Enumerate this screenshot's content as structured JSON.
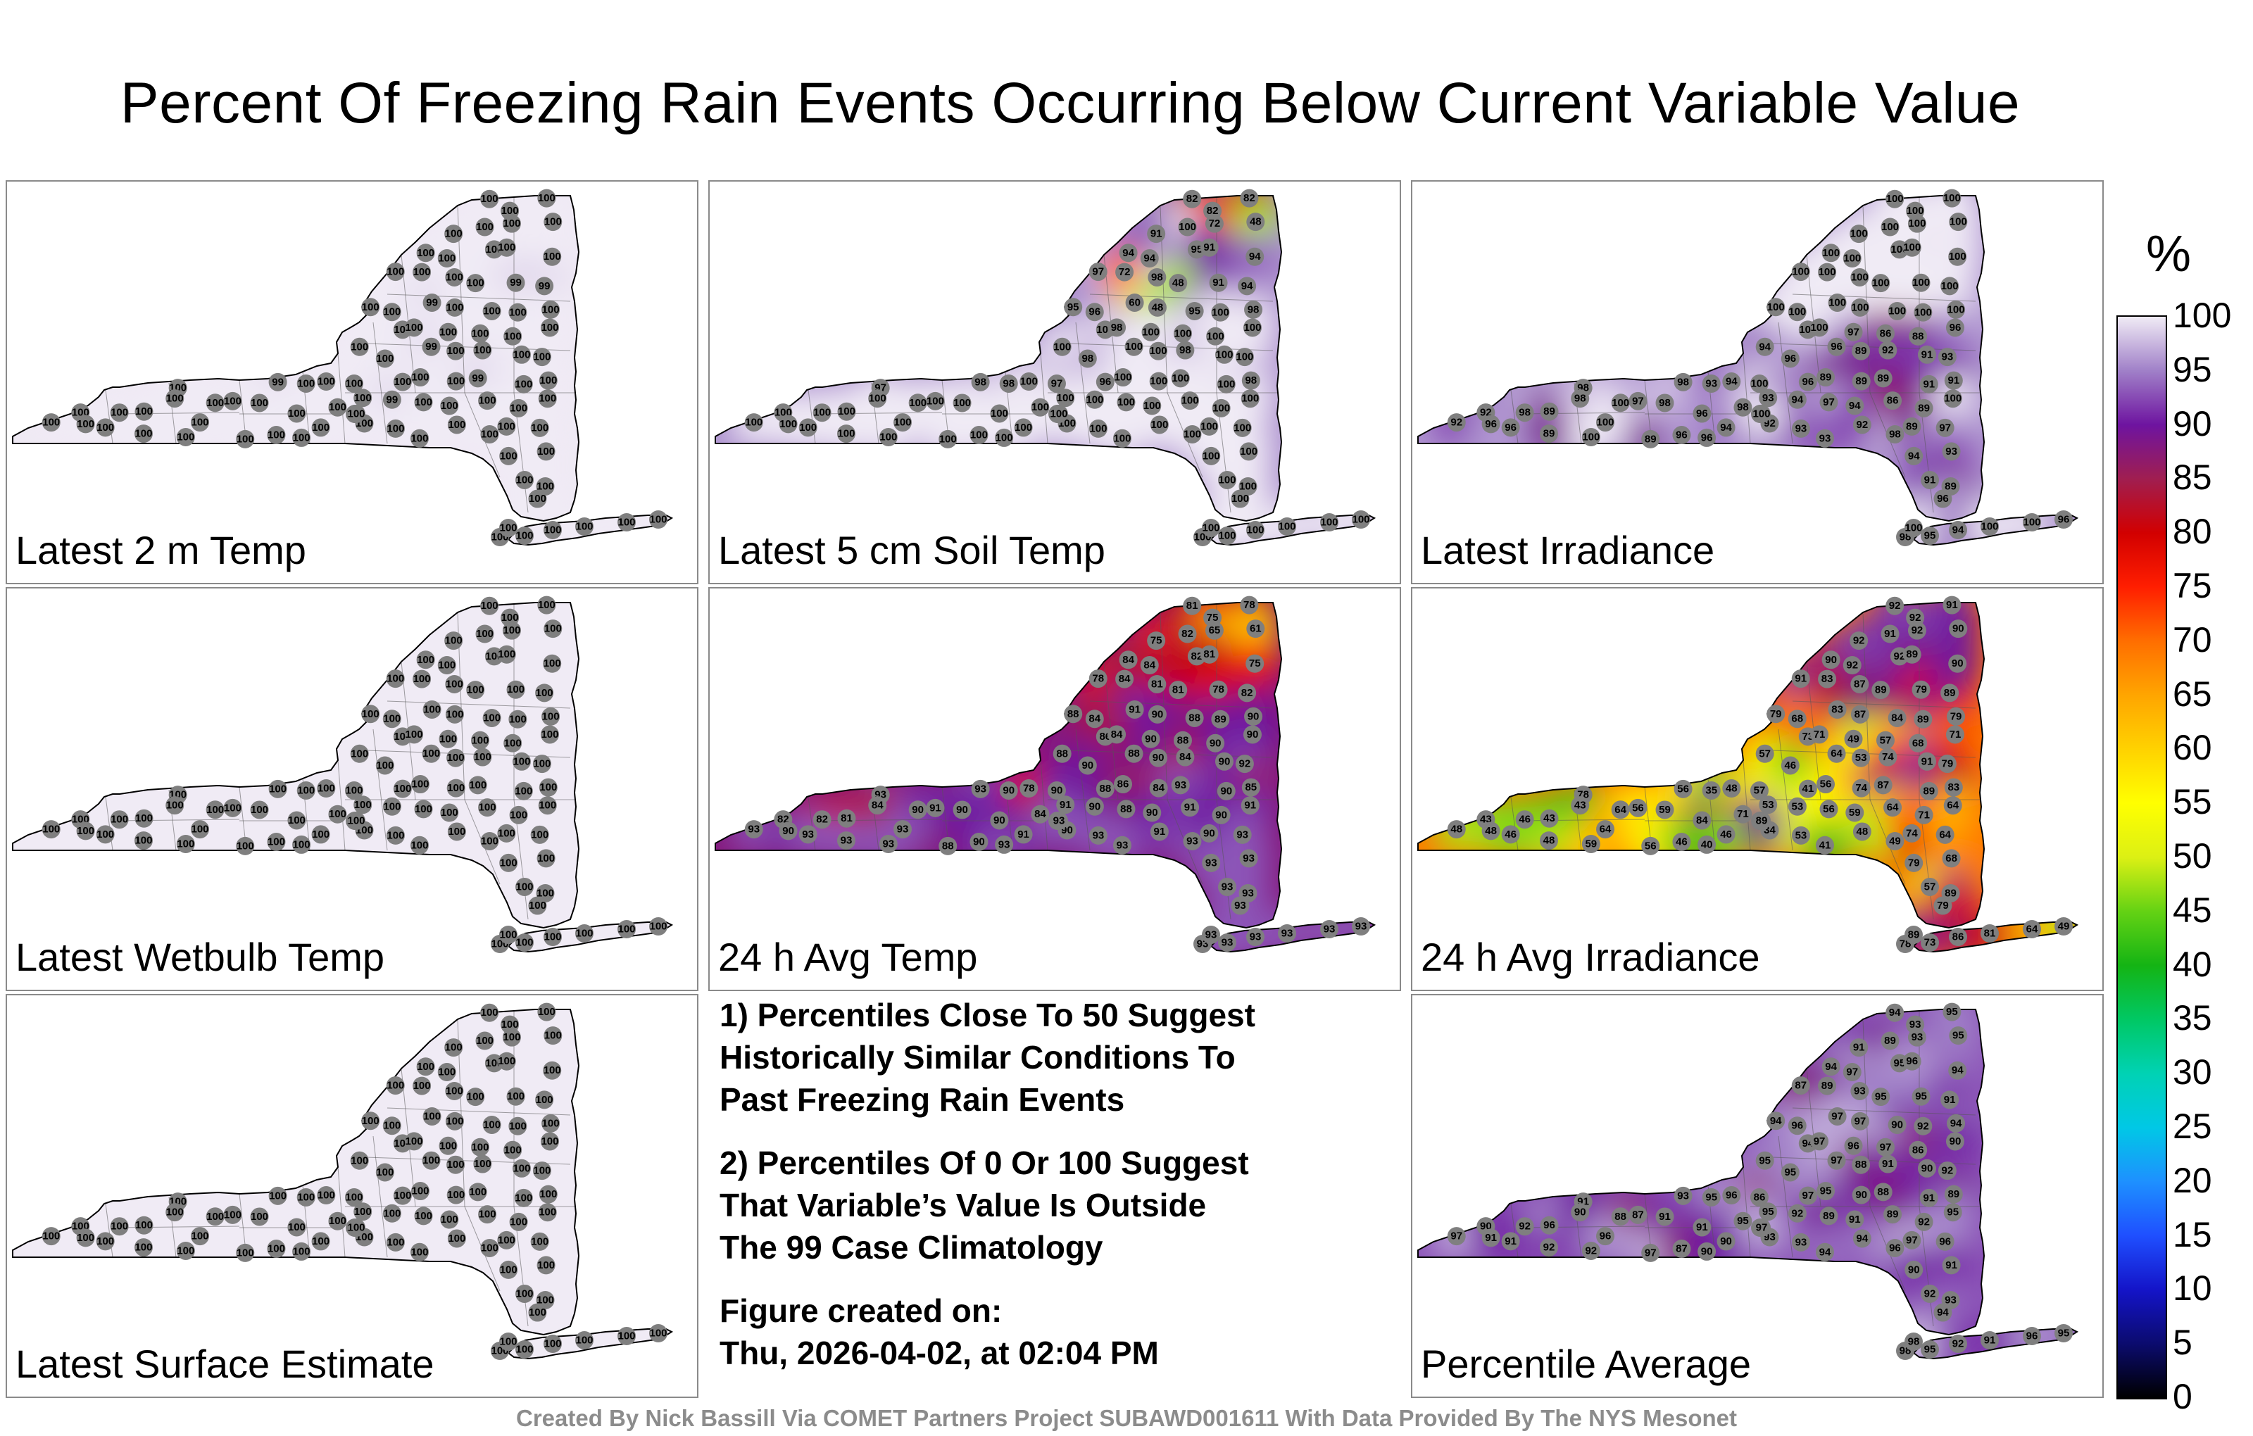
{
  "title": "Percent Of Freezing Rain Events Occurring Below Current Variable Value",
  "colorbar": {
    "unit": "%",
    "ticks": [
      "100",
      "95",
      "90",
      "85",
      "80",
      "75",
      "70",
      "65",
      "60",
      "55",
      "50",
      "45",
      "40",
      "35",
      "30",
      "25",
      "20",
      "15",
      "10",
      "5",
      "0"
    ],
    "stops": [
      {
        "value": 0,
        "color": "#000000"
      },
      {
        "value": 5,
        "color": "#0b0b6e"
      },
      {
        "value": 10,
        "color": "#1414c8"
      },
      {
        "value": 15,
        "color": "#1f4fff"
      },
      {
        "value": 20,
        "color": "#1e90ff"
      },
      {
        "value": 25,
        "color": "#00c8e6"
      },
      {
        "value": 30,
        "color": "#00d2b4"
      },
      {
        "value": 35,
        "color": "#00c864"
      },
      {
        "value": 40,
        "color": "#14b414"
      },
      {
        "value": 45,
        "color": "#64d214"
      },
      {
        "value": 50,
        "color": "#dcf014"
      },
      {
        "value": 55,
        "color": "#ffff00"
      },
      {
        "value": 60,
        "color": "#ffd200"
      },
      {
        "value": 65,
        "color": "#ffa500"
      },
      {
        "value": 70,
        "color": "#ff6e00"
      },
      {
        "value": 75,
        "color": "#ff1e00"
      },
      {
        "value": 80,
        "color": "#d20000"
      },
      {
        "value": 85,
        "color": "#a01e50"
      },
      {
        "value": 90,
        "color": "#6e14a0"
      },
      {
        "value": 95,
        "color": "#a080c8"
      },
      {
        "value": 100,
        "color": "#f0ebf5"
      }
    ]
  },
  "panels": [
    {
      "label": "Latest 2 m Temp",
      "values": [
        100,
        100,
        100,
        100,
        100,
        100,
        100,
        100,
        100,
        100,
        100,
        100,
        100,
        100,
        100,
        100,
        99,
        99,
        100,
        100,
        99,
        100,
        100,
        100,
        100,
        100,
        100,
        100,
        100,
        100,
        100,
        100,
        100,
        99,
        100,
        100,
        100,
        100,
        100,
        99,
        100,
        100,
        100,
        100,
        100,
        100,
        99,
        100,
        100,
        100,
        100,
        100,
        100,
        100,
        100,
        100,
        100,
        100,
        100,
        99,
        100,
        100,
        100,
        100,
        100,
        100,
        100,
        100,
        100,
        100,
        100,
        100,
        100,
        100,
        100,
        100,
        100,
        100,
        100,
        100,
        100,
        100,
        100,
        100,
        100,
        100,
        100,
        100,
        100,
        100,
        100,
        100,
        100,
        100,
        100,
        100,
        100
      ]
    },
    {
      "label": "Latest 5 cm Soil Temp",
      "values": [
        82,
        82,
        82,
        91,
        100,
        72,
        48,
        94,
        94,
        95,
        91,
        94,
        97,
        72,
        98,
        48,
        91,
        94,
        95,
        96,
        60,
        48,
        95,
        100,
        98,
        100,
        98,
        100,
        100,
        100,
        100,
        100,
        98,
        100,
        100,
        98,
        100,
        100,
        97,
        98,
        98,
        100,
        97,
        96,
        100,
        100,
        100,
        100,
        98,
        100,
        100,
        100,
        100,
        100,
        100,
        100,
        100,
        100,
        100,
        100,
        100,
        100,
        100,
        100,
        100,
        100,
        100,
        100,
        100,
        100,
        100,
        100,
        100,
        100,
        100,
        100,
        100,
        100,
        100,
        100,
        100,
        100,
        100,
        100,
        100,
        100,
        100,
        100,
        100,
        100,
        100,
        100,
        100,
        100,
        100,
        100,
        100
      ]
    },
    {
      "label": "Latest Irradiance",
      "values": [
        100,
        100,
        100,
        100,
        100,
        100,
        100,
        100,
        100,
        100,
        100,
        100,
        100,
        100,
        100,
        100,
        100,
        100,
        100,
        100,
        100,
        100,
        100,
        100,
        100,
        100,
        100,
        97,
        86,
        88,
        96,
        94,
        96,
        96,
        89,
        92,
        91,
        93,
        98,
        98,
        93,
        94,
        100,
        96,
        89,
        89,
        89,
        91,
        91,
        92,
        98,
        89,
        98,
        100,
        97,
        98,
        96,
        98,
        93,
        94,
        97,
        94,
        86,
        89,
        100,
        92,
        96,
        96,
        89,
        100,
        100,
        89,
        96,
        96,
        94,
        92,
        93,
        93,
        92,
        98,
        89,
        97,
        94,
        93,
        91,
        89,
        96,
        95,
        94,
        100,
        100,
        96,
        98,
        100,
        100,
        100,
        100
      ]
    },
    {
      "label": "Latest Wetbulb Temp",
      "values": [
        100,
        100,
        100,
        100,
        100,
        100,
        100,
        100,
        100,
        100,
        100,
        100,
        100,
        100,
        100,
        100,
        100,
        100,
        100,
        100,
        100,
        100,
        100,
        100,
        100,
        100,
        100,
        100,
        100,
        100,
        100,
        100,
        100,
        100,
        100,
        100,
        100,
        100,
        100,
        100,
        100,
        100,
        100,
        100,
        100,
        100,
        100,
        100,
        100,
        100,
        100,
        100,
        100,
        100,
        100,
        100,
        100,
        100,
        100,
        100,
        100,
        100,
        100,
        100,
        100,
        100,
        100,
        100,
        100,
        100,
        100,
        100,
        100,
        100,
        100,
        100,
        100,
        100,
        100,
        100,
        100,
        100,
        100,
        100,
        100,
        100,
        100,
        100,
        100,
        100,
        100,
        100,
        100,
        100,
        100,
        100,
        100
      ]
    },
    {
      "label": "24 h Avg Temp",
      "values": [
        81,
        75,
        78,
        75,
        82,
        65,
        61,
        84,
        84,
        82,
        81,
        75,
        78,
        84,
        81,
        81,
        78,
        82,
        88,
        84,
        91,
        90,
        88,
        89,
        90,
        86,
        84,
        90,
        88,
        90,
        90,
        88,
        90,
        88,
        90,
        84,
        90,
        92,
        93,
        93,
        90,
        78,
        90,
        88,
        86,
        84,
        93,
        90,
        85,
        82,
        82,
        81,
        84,
        90,
        91,
        90,
        90,
        84,
        91,
        90,
        88,
        90,
        91,
        90,
        91,
        93,
        90,
        93,
        93,
        93,
        93,
        88,
        90,
        93,
        91,
        90,
        93,
        93,
        91,
        93,
        90,
        93,
        93,
        93,
        93,
        93,
        93,
        93,
        93,
        93,
        93,
        93,
        93,
        93,
        93,
        99,
        93
      ]
    },
    {
      "label": "24 h Avg Irradiance",
      "values": [
        92,
        92,
        91,
        92,
        91,
        92,
        90,
        90,
        92,
        92,
        89,
        90,
        91,
        83,
        87,
        89,
        79,
        89,
        79,
        68,
        83,
        87,
        84,
        89,
        79,
        73,
        71,
        49,
        57,
        68,
        71,
        57,
        46,
        64,
        53,
        74,
        91,
        79,
        78,
        56,
        35,
        48,
        57,
        41,
        56,
        74,
        87,
        89,
        83,
        43,
        46,
        43,
        43,
        64,
        56,
        59,
        84,
        71,
        53,
        53,
        56,
        59,
        64,
        71,
        64,
        48,
        48,
        46,
        48,
        59,
        64,
        56,
        46,
        40,
        46,
        34,
        53,
        41,
        48,
        49,
        74,
        64,
        79,
        68,
        57,
        89,
        79,
        73,
        86,
        81,
        64,
        49,
        78,
        89,
        90,
        90,
        89
      ]
    },
    {
      "label": "Latest Surface Estimate",
      "values": [
        100,
        100,
        100,
        100,
        100,
        100,
        100,
        100,
        100,
        100,
        100,
        100,
        100,
        100,
        100,
        100,
        100,
        100,
        100,
        100,
        100,
        100,
        100,
        100,
        100,
        100,
        100,
        100,
        100,
        100,
        100,
        100,
        100,
        100,
        100,
        100,
        100,
        100,
        100,
        100,
        100,
        100,
        100,
        100,
        100,
        100,
        100,
        100,
        100,
        100,
        100,
        100,
        100,
        100,
        100,
        100,
        100,
        100,
        100,
        100,
        100,
        100,
        100,
        100,
        100,
        100,
        100,
        100,
        100,
        100,
        100,
        100,
        100,
        100,
        100,
        100,
        100,
        100,
        100,
        100,
        100,
        100,
        100,
        100,
        100,
        100,
        100,
        100,
        100,
        100,
        100,
        100,
        100,
        100,
        100,
        100,
        100
      ]
    },
    {
      "label": "Percentile Average",
      "values": [
        94,
        93,
        95,
        91,
        89,
        93,
        95,
        94,
        97,
        95,
        96,
        94,
        87,
        89,
        93,
        95,
        95,
        91,
        94,
        96,
        97,
        97,
        90,
        92,
        94,
        94,
        97,
        96,
        97,
        86,
        90,
        95,
        95,
        97,
        88,
        91,
        90,
        92,
        91,
        93,
        95,
        96,
        86,
        97,
        95,
        90,
        88,
        91,
        89,
        90,
        92,
        96,
        90,
        88,
        87,
        91,
        91,
        95,
        95,
        92,
        89,
        91,
        89,
        92,
        95,
        97,
        91,
        91,
        92,
        92,
        96,
        97,
        87,
        90,
        90,
        93,
        93,
        94,
        94,
        96,
        97,
        96,
        90,
        91,
        92,
        93,
        94,
        95,
        92,
        91,
        96,
        95,
        98,
        98,
        96,
        95,
        97
      ]
    }
  ],
  "notes": [
    [
      "1) Percentiles Close To 50 Suggest",
      "Historically Similar Conditions To",
      "Past Freezing Rain Events"
    ],
    [
      "2) Percentiles Of 0 Or 100 Suggest",
      "That Variable’s Value Is Outside",
      "The 99 Case Climatology"
    ],
    [
      "Figure created on:",
      "Thu, 2026-04-02, at 02:04 PM"
    ]
  ],
  "footer": "Created By Nick Bassill Via COMET Partners Project SUBAWD001611 With Data Provided By The NYS Mesonet"
}
